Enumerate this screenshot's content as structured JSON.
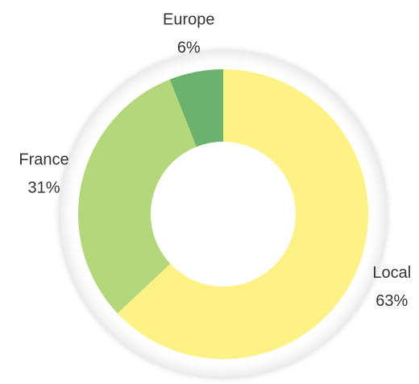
{
  "chart_data": {
    "type": "pie",
    "donut": true,
    "categories": [
      "Local",
      "France",
      "Europe"
    ],
    "values": [
      63,
      31,
      6
    ],
    "value_labels": [
      "63%",
      "31%",
      "6%"
    ],
    "colors": [
      "#fef185",
      "#b3d77a",
      "#6cb26f"
    ]
  }
}
